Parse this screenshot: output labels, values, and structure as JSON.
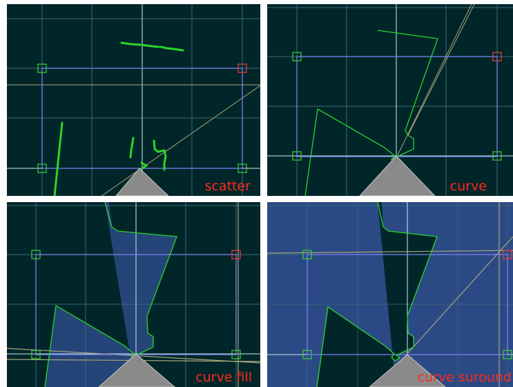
{
  "panels": [
    {
      "label": "scatter"
    },
    {
      "label": "curve"
    },
    {
      "label": "curve fill"
    },
    {
      "label": "curve suround"
    }
  ],
  "colors": {
    "background": "#01262a",
    "grid": "#3b6a74",
    "axis_light": "#c8f0ec",
    "boundary": "#7b7ff0",
    "marker_green": "#38c838",
    "marker_red": "#e83a3a",
    "scan": "#2bd62b",
    "fill": "#2b4a85",
    "laser_line": "#a8a67a",
    "robot": "#8a8a8a",
    "label": "#ff2a1a"
  }
}
